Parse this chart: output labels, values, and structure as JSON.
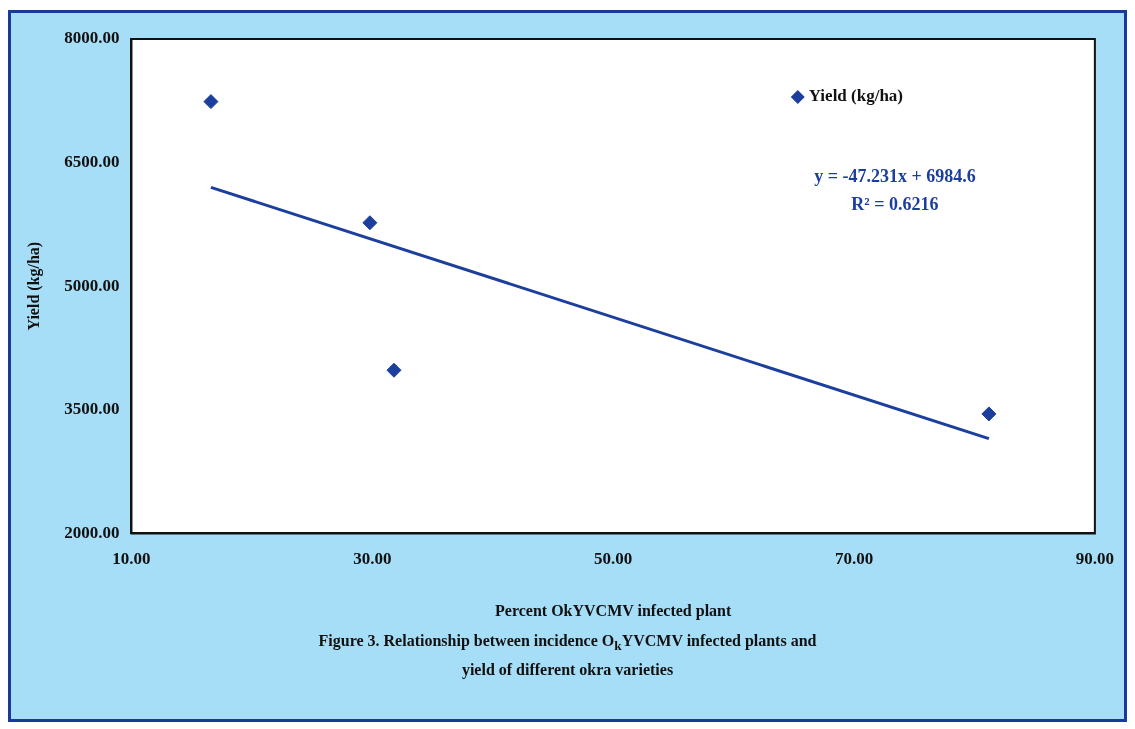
{
  "chart_data": {
    "type": "scatter",
    "title": "Figure 3. Relationship between incidence O$_{k}$YVCMV infected plants and yield of different okra varieties",
    "xlabel": "Percent OkYVCMV infected plant",
    "ylabel": "Yield (kg/ha)",
    "annotations": [
      "y = -47.231x + 6984.6",
      "R² = 0.6216"
    ],
    "series": [
      {
        "name": "Yield (kg/ha)",
        "color": "#1c3f9e",
        "x": [
          16.6,
          29.8,
          31.8,
          81.2
        ],
        "values": [
          7240,
          5770,
          3980,
          3450
        ],
        "marker": "diamond"
      },
      {
        "type": "line",
        "color": "#1c3f9e",
        "x": [
          16.6,
          81.2
        ],
        "values": [
          6200,
          3150
        ],
        "marker": "none",
        "line_style": "solid"
      }
    ],
    "xlim": [
      10,
      90
    ],
    "xticks": [
      {
        "value": 10,
        "label": "10.00"
      },
      {
        "value": 30,
        "label": "30.00"
      },
      {
        "value": 50,
        "label": "50.00"
      },
      {
        "value": 70,
        "label": "70.00"
      },
      {
        "value": 90,
        "label": "90.00"
      }
    ],
    "ylim": [
      2000,
      8000
    ],
    "yticks": [
      {
        "value": 2000,
        "label": "2000.00"
      },
      {
        "value": 3500,
        "label": "3500.00"
      },
      {
        "value": 5000,
        "label": "5000.00"
      },
      {
        "value": 6500,
        "label": "6500.00"
      },
      {
        "value": 8000,
        "label": "8000.00"
      }
    ],
    "grid": false,
    "legend": "top right"
  }
}
